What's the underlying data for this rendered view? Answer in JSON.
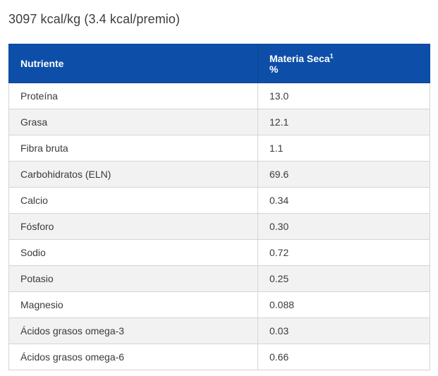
{
  "heading": "3097 kcal/kg (3.4 kcal/premio)",
  "table": {
    "header": {
      "nutrient": "Nutriente",
      "value_label": "Materia Seca",
      "value_footnote": "1",
      "value_unit": "%"
    },
    "rows": [
      {
        "nutrient": "Proteína",
        "value": "13.0"
      },
      {
        "nutrient": "Grasa",
        "value": "12.1"
      },
      {
        "nutrient": "Fibra bruta",
        "value": "1.1"
      },
      {
        "nutrient": "Carbohidratos (ELN)",
        "value": "69.6"
      },
      {
        "nutrient": "Calcio",
        "value": "0.34"
      },
      {
        "nutrient": "Fósforo",
        "value": "0.30"
      },
      {
        "nutrient": "Sodio",
        "value": "0.72"
      },
      {
        "nutrient": "Potasio",
        "value": "0.25"
      },
      {
        "nutrient": "Magnesio",
        "value": "0.088"
      },
      {
        "nutrient": "Ácidos grasos omega-3",
        "value": "0.03"
      },
      {
        "nutrient": "Ácidos grasos omega-6",
        "value": "0.66"
      }
    ]
  },
  "colors": {
    "header_background": "#0d4fa8",
    "header_text": "#ffffff",
    "row_alt_background": "#f2f2f2",
    "border": "#d4d4d4"
  }
}
